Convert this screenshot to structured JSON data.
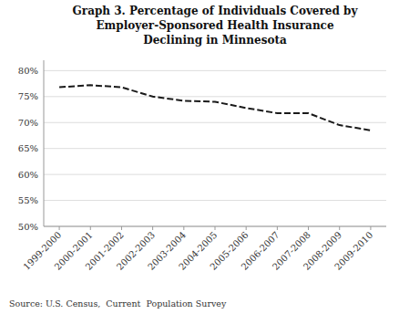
{
  "chart_data": {
    "type": "line",
    "title": "Graph 3. Percentage of Individuals Covered by\nEmployer-Sponsored Health Insurance\nDeclining in Minnesota",
    "source": "Source: U.S. Census,  Current  Population Survey",
    "categories": [
      "1999-2000",
      "2000-2001",
      "2001-2002",
      "2002-2003",
      "2003-2004",
      "2004-2005",
      "2005-2006",
      "2006-2007",
      "2007-2008",
      "2008-2009",
      "2009-2010"
    ],
    "values": [
      76.8,
      77.2,
      76.8,
      75.0,
      74.2,
      74.0,
      72.8,
      71.8,
      71.8,
      69.5,
      68.5
    ],
    "color": "#1a1a1a",
    "line_style": "dashed",
    "ylim": [
      50,
      82
    ],
    "yticks": [
      {
        "value": 50,
        "label": "50%"
      },
      {
        "value": 55,
        "label": "55%"
      },
      {
        "value": 60,
        "label": "60%"
      },
      {
        "value": 65,
        "label": "65%"
      },
      {
        "value": 70,
        "label": "70%"
      },
      {
        "value": 75,
        "label": "75%"
      },
      {
        "value": 80,
        "label": "80%"
      }
    ],
    "grid": true
  }
}
